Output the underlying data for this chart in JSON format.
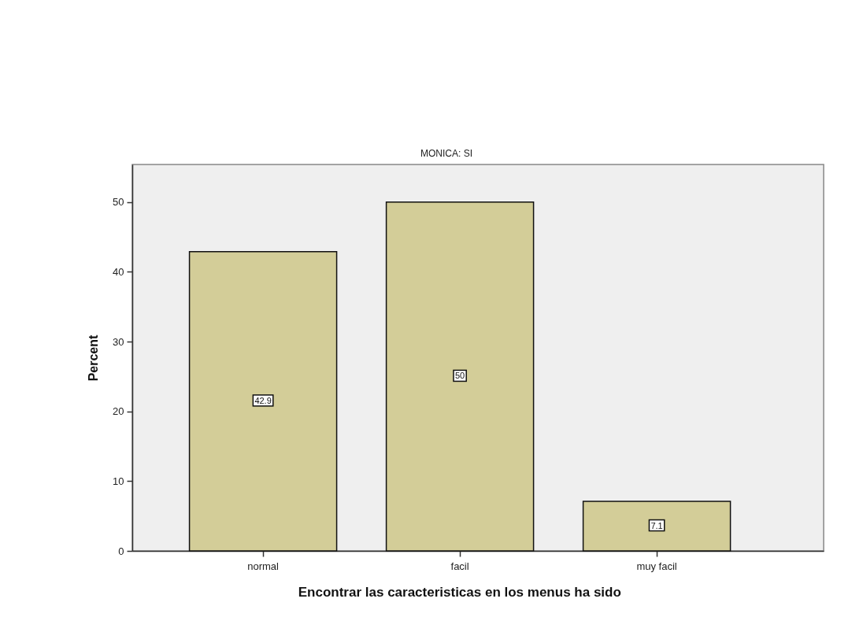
{
  "chart_data": {
    "type": "bar",
    "title": "MONICA: SI",
    "xlabel": "Encontrar las caracteristicas en los menus ha sido",
    "ylabel": "Percent",
    "categories": [
      "normal",
      "facil",
      "muy facil"
    ],
    "values": [
      42.9,
      50,
      7.1
    ],
    "color": "#d3cd98",
    "ylim": [
      0,
      55.4
    ],
    "yticks": [
      0,
      10,
      20,
      30,
      40,
      50
    ],
    "grid": false,
    "data_labels": true
  }
}
